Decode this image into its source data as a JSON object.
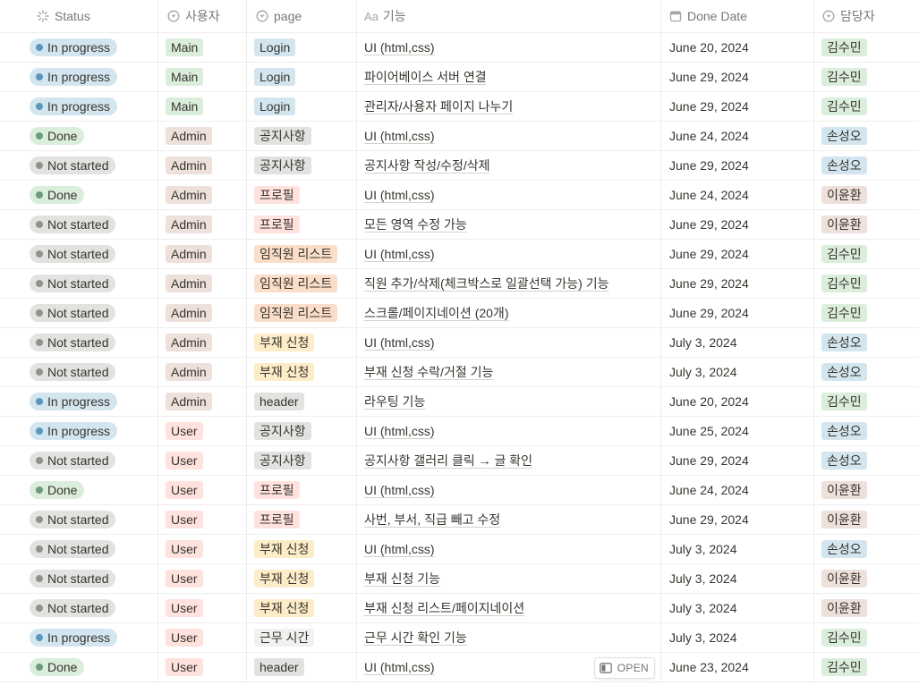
{
  "columns": {
    "status": "Status",
    "user": "사용자",
    "page": "page",
    "feature_prefix": "Aa",
    "feature": "기능",
    "done_date": "Done Date",
    "owner": "담당자"
  },
  "open_label": "OPEN",
  "status_styles": {
    "In progress": {
      "bg": "#d3e5ef",
      "dot": "#5b97bd"
    },
    "Done": {
      "bg": "#dbeddb",
      "dot": "#6c9b7d"
    },
    "Not started": {
      "bg": "#e3e2e0",
      "dot": "#91918e"
    }
  },
  "user_styles": {
    "Main": "#dbeddb",
    "Admin": "#eee0da",
    "User": "#ffe2dd"
  },
  "page_styles": {
    "Login": "#d3e5ef",
    "공지사항": "#e3e2e0",
    "프로필": "#ffe2dd",
    "임직원 리스트": "#fadec9",
    "부재 신청": "#fdecc8",
    "header": "#e3e2e0",
    "근무 시간": "#f1f1ef"
  },
  "owner_styles": {
    "김수민": "#dbeddb",
    "손성오": "#d3e5ef",
    "이윤환": "#eee0da"
  },
  "rows": [
    {
      "status": "In progress",
      "user": "Main",
      "page": "Login",
      "feature": "UI (html,css)",
      "date": "June 20, 2024",
      "owner": "김수민"
    },
    {
      "status": "In progress",
      "user": "Main",
      "page": "Login",
      "feature": "파이어베이스 서버 연결",
      "date": "June 29, 2024",
      "owner": "김수민"
    },
    {
      "status": "In progress",
      "user": "Main",
      "page": "Login",
      "feature": "관리자/사용자 페이지 나누기",
      "date": "June 29, 2024",
      "owner": "김수민"
    },
    {
      "status": "Done",
      "user": "Admin",
      "page": "공지사항",
      "feature": "UI (html,css)",
      "date": "June 24, 2024",
      "owner": "손성오"
    },
    {
      "status": "Not started",
      "user": "Admin",
      "page": "공지사항",
      "feature": "공지사항 작성/수정/삭제",
      "date": "June 29, 2024",
      "owner": "손성오"
    },
    {
      "status": "Done",
      "user": "Admin",
      "page": "프로필",
      "feature": "UI (html,css)",
      "date": "June 24, 2024",
      "owner": "이윤환"
    },
    {
      "status": "Not started",
      "user": "Admin",
      "page": "프로필",
      "feature": "모든 영역 수정 가능",
      "date": "June 29, 2024",
      "owner": "이윤환"
    },
    {
      "status": "Not started",
      "user": "Admin",
      "page": "임직원 리스트",
      "feature": "UI (html,css)",
      "date": "June 29, 2024",
      "owner": "김수민"
    },
    {
      "status": "Not started",
      "user": "Admin",
      "page": "임직원 리스트",
      "feature": "직원 추가/삭제(체크박스로 일괄선택 가능) 기능",
      "date": "June 29, 2024",
      "owner": "김수민"
    },
    {
      "status": "Not started",
      "user": "Admin",
      "page": "임직원 리스트",
      "feature": "스크롤/페이지네이션 (20개)",
      "date": "June 29, 2024",
      "owner": "김수민"
    },
    {
      "status": "Not started",
      "user": "Admin",
      "page": "부재 신청",
      "feature": "UI (html,css)",
      "date": "July 3, 2024",
      "owner": "손성오"
    },
    {
      "status": "Not started",
      "user": "Admin",
      "page": "부재 신청",
      "feature": "부재 신청 수락/거절 기능",
      "date": "July 3, 2024",
      "owner": "손성오"
    },
    {
      "status": "In progress",
      "user": "Admin",
      "page": "header",
      "feature": "라우팅 기능",
      "date": "June 20, 2024",
      "owner": "김수민"
    },
    {
      "status": "In progress",
      "user": "User",
      "page": "공지사항",
      "feature": "UI (html,css)",
      "date": "June 25, 2024",
      "owner": "손성오"
    },
    {
      "status": "Not started",
      "user": "User",
      "page": "공지사항",
      "feature": "공지사항 갤러리 클릭 → 글 확인",
      "date": "June 29, 2024",
      "owner": "손성오"
    },
    {
      "status": "Done",
      "user": "User",
      "page": "프로필",
      "feature": "UI (html,css)",
      "date": "June 24, 2024",
      "owner": "이윤환"
    },
    {
      "status": "Not started",
      "user": "User",
      "page": "프로필",
      "feature": "사번, 부서, 직급 빼고 수정",
      "date": "June 29, 2024",
      "owner": "이윤환"
    },
    {
      "status": "Not started",
      "user": "User",
      "page": "부재 신청",
      "feature": "UI (html,css)",
      "date": "July 3, 2024",
      "owner": "손성오"
    },
    {
      "status": "Not started",
      "user": "User",
      "page": "부재 신청",
      "feature": "부재 신청 기능",
      "date": "July 3, 2024",
      "owner": "이윤환"
    },
    {
      "status": "Not started",
      "user": "User",
      "page": "부재 신청",
      "feature": "부재 신청 리스트/페이지네이션",
      "date": "July 3, 2024",
      "owner": "이윤환"
    },
    {
      "status": "In progress",
      "user": "User",
      "page": "근무 시간",
      "feature": "근무 시간 확인 기능",
      "date": "July 3, 2024",
      "owner": "김수민"
    },
    {
      "status": "Done",
      "user": "User",
      "page": "header",
      "feature": "UI (html,css)",
      "date": "June 23, 2024",
      "owner": "김수민",
      "hover_open": true
    }
  ]
}
